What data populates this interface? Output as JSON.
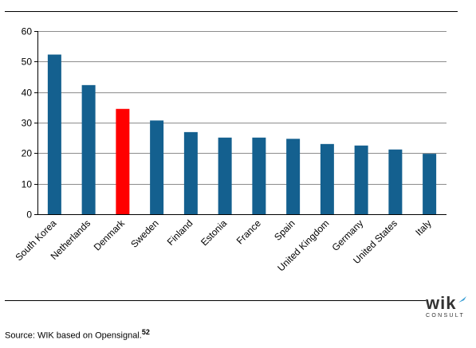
{
  "chart_data": {
    "type": "bar",
    "categories": [
      "South Korea",
      "Netherlands",
      "Denmark",
      "Sweden",
      "Finland",
      "Estonia",
      "France",
      "Spain",
      "United Kingdom",
      "Germany",
      "United States",
      "Italy"
    ],
    "values": [
      52.3,
      42.3,
      34.5,
      30.7,
      26.9,
      25.1,
      25.1,
      24.7,
      23.0,
      22.5,
      21.2,
      19.8
    ],
    "ylim": [
      0,
      60
    ],
    "yticks": [
      0,
      10,
      20,
      30,
      40,
      50,
      60
    ],
    "grid": true,
    "colors": {
      "default": "#14608f",
      "highlight": "#ff0000",
      "highlight_category": "Denmark"
    }
  },
  "source": {
    "text": "Source: WIK based on Opensignal.",
    "footnote": "52"
  },
  "logo": {
    "name": "wik",
    "tagline": "CONSULT",
    "icon": "logo-swoosh-icon"
  }
}
